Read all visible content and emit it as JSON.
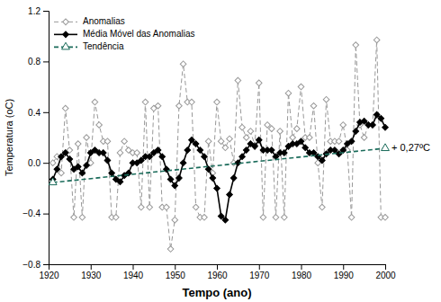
{
  "chart_data": {
    "type": "line",
    "x": [
      1921,
      1922,
      1923,
      1924,
      1925,
      1926,
      1927,
      1928,
      1929,
      1930,
      1931,
      1932,
      1933,
      1934,
      1935,
      1936,
      1937,
      1938,
      1939,
      1940,
      1941,
      1942,
      1943,
      1944,
      1945,
      1946,
      1947,
      1948,
      1949,
      1950,
      1951,
      1952,
      1953,
      1954,
      1955,
      1956,
      1957,
      1958,
      1959,
      1960,
      1961,
      1962,
      1963,
      1964,
      1965,
      1966,
      1967,
      1968,
      1969,
      1970,
      1971,
      1972,
      1973,
      1974,
      1975,
      1976,
      1977,
      1978,
      1979,
      1980,
      1981,
      1982,
      1983,
      1984,
      1985,
      1986,
      1987,
      1988,
      1989,
      1990,
      1991,
      1992,
      1993,
      1994,
      1995,
      1996,
      1997,
      1998,
      1999,
      2000
    ],
    "series": [
      {
        "name": "Anomalias",
        "color": "#999999",
        "line_style": "dashed",
        "marker": "open-diamond",
        "values": [
          0.0,
          0.05,
          -0.08,
          0.43,
          0.1,
          -0.43,
          0.15,
          -0.43,
          0.2,
          0.0,
          0.48,
          0.3,
          0.17,
          0.17,
          -0.43,
          -0.43,
          0.08,
          0.17,
          0.1,
          0.08,
          0.08,
          -0.35,
          0.48,
          -0.35,
          0.43,
          0.45,
          -0.35,
          -0.35,
          -0.68,
          -0.45,
          0.45,
          0.78,
          0.48,
          0.48,
          -0.35,
          -0.43,
          -0.43,
          0.17,
          -0.08,
          0.48,
          0.17,
          0.12,
          0.19,
          0.0,
          0.65,
          0.28,
          0.2,
          0.25,
          0.14,
          0.63,
          -0.43,
          0.3,
          0.27,
          -0.43,
          0.25,
          -0.43,
          0.55,
          0.2,
          0.27,
          0.6,
          0.2,
          0.2,
          0.45,
          0.0,
          -0.35,
          0.5,
          0.17,
          0.17,
          0.17,
          0.3,
          0.1,
          -0.43,
          0.93,
          0.3,
          0.2,
          0.3,
          0.3,
          0.97,
          -0.43,
          -0.43
        ]
      },
      {
        "name": "Média Móvel das Anomalias",
        "color": "#000000",
        "line_style": "solid",
        "marker": "diamond",
        "values": [
          -0.13,
          -0.05,
          0.05,
          0.08,
          0.03,
          -0.05,
          -0.03,
          -0.08,
          -0.02,
          0.08,
          0.1,
          0.08,
          0.08,
          0.02,
          -0.08,
          -0.13,
          -0.15,
          -0.1,
          -0.08,
          0.0,
          0.0,
          0.02,
          0.05,
          0.05,
          0.08,
          0.1,
          0.05,
          -0.05,
          -0.13,
          -0.18,
          -0.12,
          0.0,
          0.1,
          0.18,
          0.15,
          0.1,
          0.05,
          -0.05,
          -0.12,
          -0.2,
          -0.42,
          -0.45,
          -0.25,
          -0.12,
          0.0,
          0.05,
          0.1,
          0.15,
          0.13,
          0.18,
          0.1,
          0.1,
          0.1,
          0.05,
          0.08,
          0.08,
          0.13,
          0.15,
          0.15,
          0.17,
          0.12,
          0.08,
          0.08,
          0.05,
          0.02,
          0.07,
          0.1,
          0.1,
          0.07,
          0.1,
          0.15,
          0.17,
          0.25,
          0.32,
          0.33,
          0.3,
          0.3,
          0.38,
          0.35,
          0.28
        ]
      },
      {
        "name": "Tendência",
        "color": "#1a6b5a",
        "line_style": "dashed",
        "marker": "open-triangle-up",
        "x": [
          1921,
          2000
        ],
        "values": [
          -0.155,
          0.115
        ]
      }
    ],
    "annotation": "+ 0,27ºC",
    "xlabel": "Tempo (ano)",
    "ylabel": "Temperatura (oC)",
    "xlim": [
      1920,
      2000
    ],
    "ylim": [
      -0.8,
      1.2
    ],
    "xticks": [
      1920,
      1930,
      1940,
      1950,
      1960,
      1970,
      1980,
      1990,
      2000
    ],
    "yticks": [
      {
        "value": -0.8,
        "label": "−0.8"
      },
      {
        "value": -0.4,
        "label": "−0.4"
      },
      {
        "value": 0.0,
        "label": "0.0"
      },
      0.4,
      0.8,
      1.2
    ],
    "legend": "upper left",
    "grid": false
  }
}
